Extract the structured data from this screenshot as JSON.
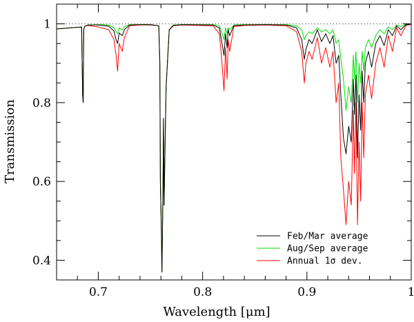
{
  "chart_data": {
    "type": "line",
    "title": "",
    "xlabel": "Wavelength [μm]",
    "ylabel": "Transmission",
    "xlim": [
      0.66,
      1.0
    ],
    "ylim": [
      0.35,
      1.05
    ],
    "x_ticks": [
      0.7,
      0.8,
      0.9,
      1.0
    ],
    "x_tick_labels": [
      "0.7",
      "0.8",
      "0.9",
      "1"
    ],
    "y_ticks": [
      0.4,
      0.6,
      0.8,
      1.0
    ],
    "y_tick_labels": [
      "0.4",
      "0.6",
      "0.8",
      "1"
    ],
    "reference_line": {
      "y": 1.0,
      "style": "dotted"
    },
    "legend_position": "bottom-right",
    "series": [
      {
        "name": "Feb/Mar average",
        "color": "#000000",
        "x": [
          0.66,
          0.684,
          0.685,
          0.6855,
          0.686,
          0.687,
          0.69,
          0.7,
          0.71,
          0.715,
          0.717,
          0.7185,
          0.72,
          0.723,
          0.725,
          0.73,
          0.74,
          0.75,
          0.758,
          0.759,
          0.7595,
          0.7605,
          0.761,
          0.762,
          0.7625,
          0.763,
          0.764,
          0.765,
          0.768,
          0.772,
          0.78,
          0.81,
          0.816,
          0.818,
          0.8205,
          0.822,
          0.8235,
          0.8245,
          0.826,
          0.83,
          0.84,
          0.86,
          0.88,
          0.89,
          0.895,
          0.8975,
          0.899,
          0.902,
          0.905,
          0.91,
          0.914,
          0.918,
          0.922,
          0.925,
          0.928,
          0.9305,
          0.9325,
          0.935,
          0.9375,
          0.94,
          0.9425,
          0.9445,
          0.9455,
          0.947,
          0.9485,
          0.95,
          0.9515,
          0.953,
          0.9545,
          0.956,
          0.959,
          0.962,
          0.966,
          0.97,
          0.974,
          0.978,
          0.982,
          0.986,
          0.99,
          0.995,
          1.0
        ],
        "values": [
          0.987,
          0.992,
          0.82,
          0.8,
          0.985,
          0.994,
          0.997,
          0.997,
          0.994,
          0.982,
          0.96,
          0.95,
          0.977,
          0.97,
          0.985,
          0.997,
          0.998,
          0.998,
          0.995,
          0.9,
          0.6,
          0.47,
          0.37,
          0.58,
          0.76,
          0.54,
          0.69,
          0.84,
          0.985,
          0.996,
          0.998,
          0.997,
          0.99,
          0.96,
          0.92,
          0.975,
          0.94,
          0.985,
          0.97,
          0.996,
          0.997,
          0.998,
          0.997,
          0.99,
          0.96,
          0.91,
          0.935,
          0.96,
          0.95,
          0.985,
          0.955,
          0.975,
          0.95,
          0.97,
          0.9,
          0.92,
          0.82,
          0.71,
          0.67,
          0.74,
          0.7,
          0.86,
          0.77,
          0.87,
          0.66,
          0.82,
          0.73,
          0.88,
          0.8,
          0.9,
          0.93,
          0.89,
          0.95,
          0.97,
          0.945,
          0.985,
          0.97,
          0.995,
          0.985,
          0.998,
          0.999
        ]
      },
      {
        "name": "Aug/Sep average",
        "color": "#00dd00",
        "x": [
          0.66,
          0.684,
          0.685,
          0.6855,
          0.686,
          0.687,
          0.69,
          0.7,
          0.71,
          0.715,
          0.717,
          0.7185,
          0.72,
          0.723,
          0.725,
          0.73,
          0.74,
          0.75,
          0.758,
          0.759,
          0.7595,
          0.7605,
          0.761,
          0.762,
          0.7625,
          0.763,
          0.764,
          0.765,
          0.768,
          0.772,
          0.78,
          0.81,
          0.816,
          0.818,
          0.8205,
          0.822,
          0.8235,
          0.8245,
          0.826,
          0.83,
          0.84,
          0.86,
          0.88,
          0.89,
          0.895,
          0.8975,
          0.899,
          0.902,
          0.905,
          0.91,
          0.914,
          0.918,
          0.922,
          0.925,
          0.928,
          0.9305,
          0.9325,
          0.935,
          0.9375,
          0.94,
          0.9425,
          0.9445,
          0.9455,
          0.947,
          0.9485,
          0.95,
          0.9515,
          0.953,
          0.9545,
          0.956,
          0.959,
          0.962,
          0.966,
          0.97,
          0.974,
          0.978,
          0.982,
          0.986,
          0.99,
          0.995,
          1.0
        ],
        "values": [
          0.987,
          0.992,
          0.82,
          0.8,
          0.985,
          0.994,
          0.997,
          0.998,
          0.997,
          0.99,
          0.98,
          0.975,
          0.99,
          0.985,
          0.993,
          0.998,
          0.998,
          0.998,
          0.995,
          0.9,
          0.6,
          0.47,
          0.37,
          0.58,
          0.76,
          0.54,
          0.69,
          0.84,
          0.985,
          0.997,
          0.998,
          0.998,
          0.995,
          0.98,
          0.96,
          0.99,
          0.975,
          0.99,
          0.985,
          0.997,
          0.998,
          0.998,
          0.998,
          0.995,
          0.985,
          0.96,
          0.97,
          0.98,
          0.975,
          0.99,
          0.98,
          0.985,
          0.975,
          0.985,
          0.95,
          0.96,
          0.91,
          0.86,
          0.78,
          0.84,
          0.8,
          0.92,
          0.86,
          0.93,
          0.8,
          0.9,
          0.85,
          0.93,
          0.88,
          0.94,
          0.96,
          0.94,
          0.97,
          0.985,
          0.975,
          0.992,
          0.985,
          0.997,
          0.993,
          0.999,
          0.999
        ]
      },
      {
        "name": "Annual 1σ dev.",
        "color": "#ff0000",
        "x": [
          0.66,
          0.684,
          0.685,
          0.6855,
          0.686,
          0.687,
          0.69,
          0.7,
          0.71,
          0.715,
          0.717,
          0.7185,
          0.72,
          0.723,
          0.725,
          0.73,
          0.74,
          0.75,
          0.758,
          0.759,
          0.7595,
          0.7605,
          0.761,
          0.762,
          0.7625,
          0.763,
          0.764,
          0.765,
          0.768,
          0.772,
          0.78,
          0.81,
          0.816,
          0.818,
          0.8205,
          0.822,
          0.8235,
          0.8245,
          0.826,
          0.83,
          0.84,
          0.86,
          0.88,
          0.89,
          0.895,
          0.8975,
          0.899,
          0.902,
          0.905,
          0.91,
          0.914,
          0.918,
          0.922,
          0.925,
          0.928,
          0.9305,
          0.9325,
          0.935,
          0.9375,
          0.94,
          0.9425,
          0.9445,
          0.9455,
          0.947,
          0.9485,
          0.95,
          0.9515,
          0.953,
          0.9545,
          0.956,
          0.959,
          0.962,
          0.966,
          0.97,
          0.974,
          0.978,
          0.982,
          0.986,
          0.99,
          0.995,
          1.0
        ],
        "values": [
          0.987,
          0.992,
          0.82,
          0.8,
          0.985,
          0.994,
          0.996,
          0.992,
          0.985,
          0.96,
          0.92,
          0.88,
          0.95,
          0.93,
          0.965,
          0.995,
          0.997,
          0.997,
          0.995,
          0.9,
          0.6,
          0.47,
          0.37,
          0.58,
          0.76,
          0.54,
          0.69,
          0.84,
          0.985,
          0.995,
          0.997,
          0.995,
          0.975,
          0.92,
          0.83,
          0.94,
          0.86,
          0.96,
          0.93,
          0.993,
          0.996,
          0.997,
          0.995,
          0.98,
          0.93,
          0.85,
          0.9,
          0.93,
          0.91,
          0.965,
          0.9,
          0.94,
          0.89,
          0.93,
          0.8,
          0.85,
          0.66,
          0.58,
          0.49,
          0.6,
          0.54,
          0.78,
          0.62,
          0.8,
          0.49,
          0.7,
          0.55,
          0.8,
          0.66,
          0.82,
          0.87,
          0.81,
          0.9,
          0.94,
          0.89,
          0.97,
          0.93,
          0.99,
          0.97,
          0.996,
          0.999
        ]
      }
    ]
  }
}
